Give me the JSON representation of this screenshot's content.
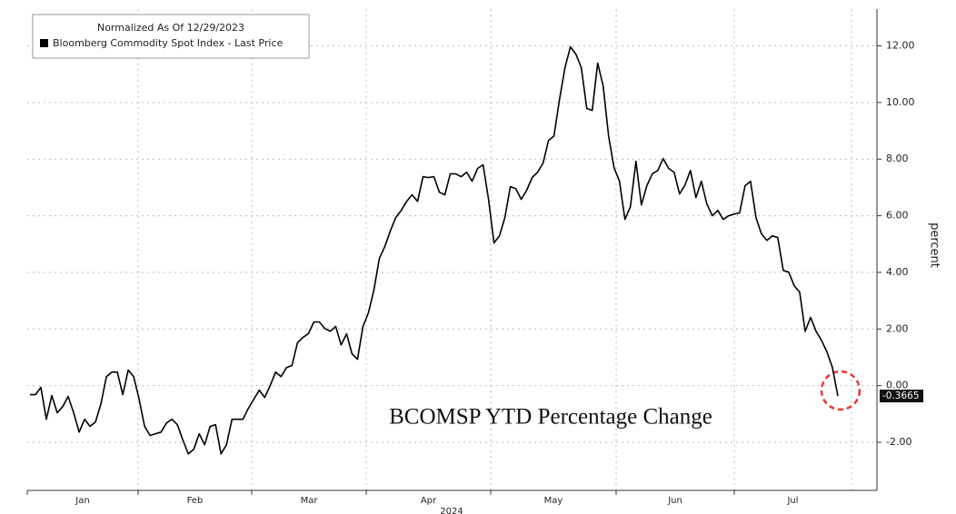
{
  "chart_data": {
    "type": "line",
    "subtitle": "Normalized As Of 12/29/2023",
    "annotation": "BCOMSP YTD Percentage Change",
    "y_label": "percent",
    "x_labels": [
      "Jan",
      "Feb",
      "Mar",
      "Apr",
      "May",
      "Jun",
      "Jul"
    ],
    "x_title": "2024",
    "series": [
      {
        "name": "Bloomberg Commodity Spot Index - Last Price",
        "color": "#000000",
        "values": [
          -0.32,
          -0.32,
          -0.06,
          -1.19,
          -0.35,
          -0.96,
          -0.74,
          -0.38,
          -0.96,
          -1.64,
          -1.19,
          -1.44,
          -1.28,
          -0.64,
          0.32,
          0.48,
          0.48,
          -0.32,
          0.55,
          0.32,
          -0.48,
          -1.44,
          -1.76,
          -1.7,
          -1.64,
          -1.32,
          -1.19,
          -1.38,
          -1.92,
          -2.41,
          -2.25,
          -1.7,
          -2.09,
          -1.44,
          -1.38,
          -2.41,
          -2.09,
          -1.19,
          -1.19,
          -1.19,
          -0.8,
          -0.48,
          -0.16,
          -0.42,
          0,
          0.48,
          0.32,
          0.64,
          0.71,
          1.51,
          1.7,
          1.83,
          2.25,
          2.25,
          2.02,
          1.92,
          2.09,
          1.44,
          1.83,
          1.12,
          0.93,
          2.09,
          2.57,
          3.37,
          4.49,
          4.91,
          5.45,
          5.94,
          6.19,
          6.51,
          6.74,
          6.51,
          7.38,
          7.35,
          7.38,
          6.83,
          6.74,
          7.48,
          7.48,
          7.38,
          7.54,
          7.22,
          7.67,
          7.8,
          6.58,
          5.04,
          5.29,
          5.94,
          7.03,
          6.96,
          6.58,
          6.9,
          7.35,
          7.54,
          7.86,
          8.66,
          8.82,
          10.11,
          11.23,
          11.97,
          11.71,
          11.23,
          9.79,
          9.72,
          11.39,
          10.59,
          8.82,
          7.7,
          7.22,
          5.87,
          6.32,
          7.92,
          6.38,
          7.06,
          7.48,
          7.6,
          8.02,
          7.67,
          7.54,
          6.77,
          7.09,
          7.6,
          6.64,
          7.22,
          6.42,
          6.0,
          6.19,
          5.87,
          6.0,
          6.06,
          6.1,
          7.06,
          7.22,
          5.94,
          5.36,
          5.13,
          5.29,
          5.23,
          4.07,
          4.01,
          3.53,
          3.3,
          1.92,
          2.41,
          1.92,
          1.6,
          1.19,
          0.64,
          -0.3665
        ]
      }
    ],
    "ylim": [
      -3.7,
      13.3
    ],
    "yticks": [
      {
        "value": -2,
        "label": "-2.00"
      },
      {
        "value": 0,
        "label": "0.00"
      },
      {
        "value": 2,
        "label": "2.00"
      },
      {
        "value": 4,
        "label": "4.00"
      },
      {
        "value": 6,
        "label": "6.00"
      },
      {
        "value": 8,
        "label": "8.00"
      },
      {
        "value": 10,
        "label": "10.00"
      },
      {
        "value": 12,
        "label": "12.00"
      }
    ],
    "grid": true
  }
}
